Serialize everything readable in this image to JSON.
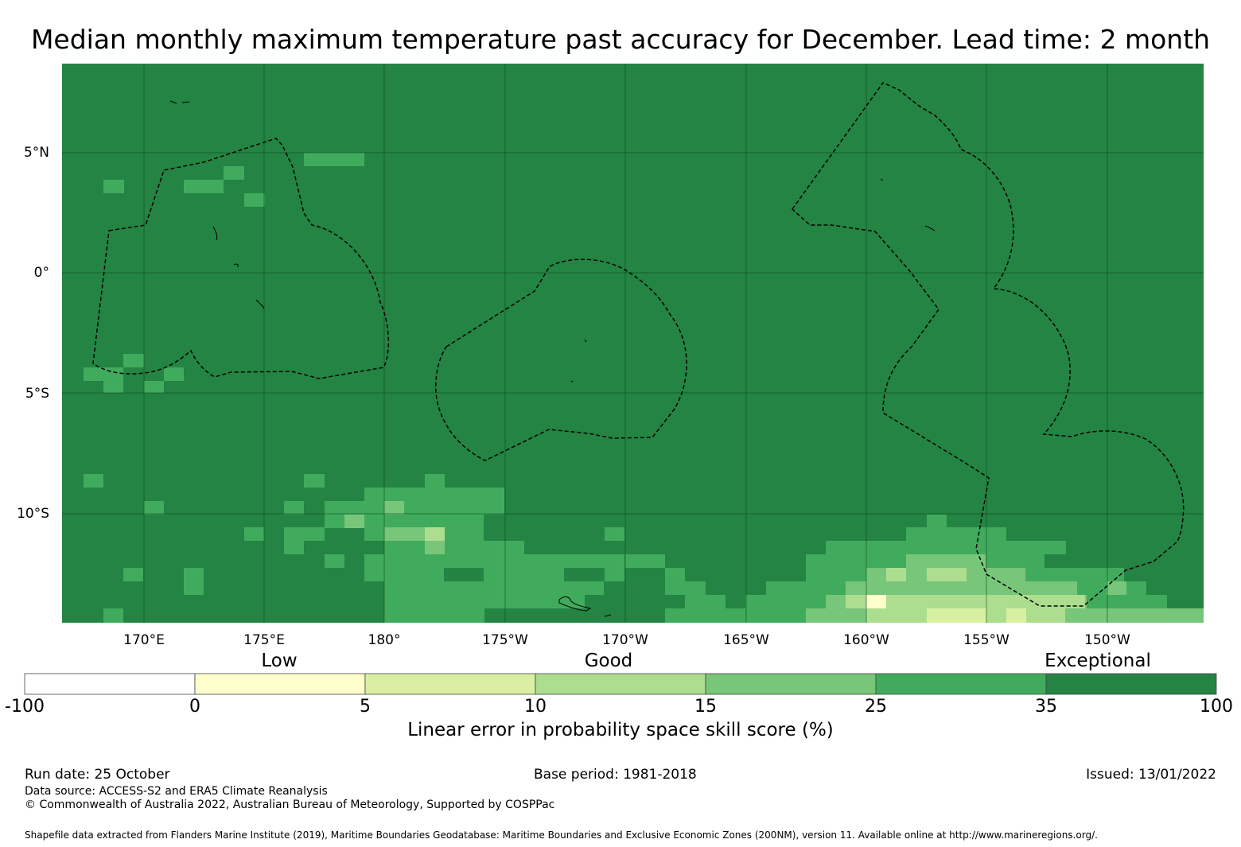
{
  "title": "Median monthly maximum temperature past accuracy for December. Lead time: 2 month",
  "map": {
    "lat_labels": [
      "5°N",
      "0°",
      "5°S",
      "10°S"
    ],
    "lon_labels": [
      "170°E",
      "175°E",
      "180°",
      "175°W",
      "170°W",
      "165°W",
      "160°W",
      "155°W",
      "150°W"
    ],
    "background_category": "35-100",
    "highlight_patches_note_colors": {
      "c35_100": "#238443",
      "c25_35": "#41ab5d",
      "c15_25": "#78c679",
      "c10_15": "#addd8e",
      "c5_10": "#d9f0a3",
      "c0_5": "#ffffcc",
      "below0": "#ffffff"
    }
  },
  "colorbar": {
    "categories": [
      {
        "label": "Low"
      },
      {
        "label": "Good"
      },
      {
        "label": "Exceptional"
      }
    ],
    "ticks": [
      "-100",
      "0",
      "5",
      "10",
      "15",
      "25",
      "35",
      "100"
    ],
    "colors": [
      "#ffffff",
      "#ffffcc",
      "#d9f0a3",
      "#addd8e",
      "#78c679",
      "#41ab5d",
      "#238443"
    ],
    "label": "Linear error in probability space skill score (%)"
  },
  "footer": {
    "run_date": "Run date: 25 October",
    "base_period": "Base period: 1981-2018",
    "issued": "Issued: 13/01/2022",
    "data_source": "Data source: ACCESS-S2 and ERA5 Climate Reanalysis",
    "copyright": "© Commonwealth of Australia 2022, Australian Bureau of Meteorology, Supported by COSPPac",
    "shapefile": "Shapefile data extracted from Flanders Marine Institute (2019), Maritime Boundaries Geodatabase: Maritime Boundaries and Exclusive Economic Zones (200NM), version 11. Available online at http://www.marineregions.org/."
  }
}
